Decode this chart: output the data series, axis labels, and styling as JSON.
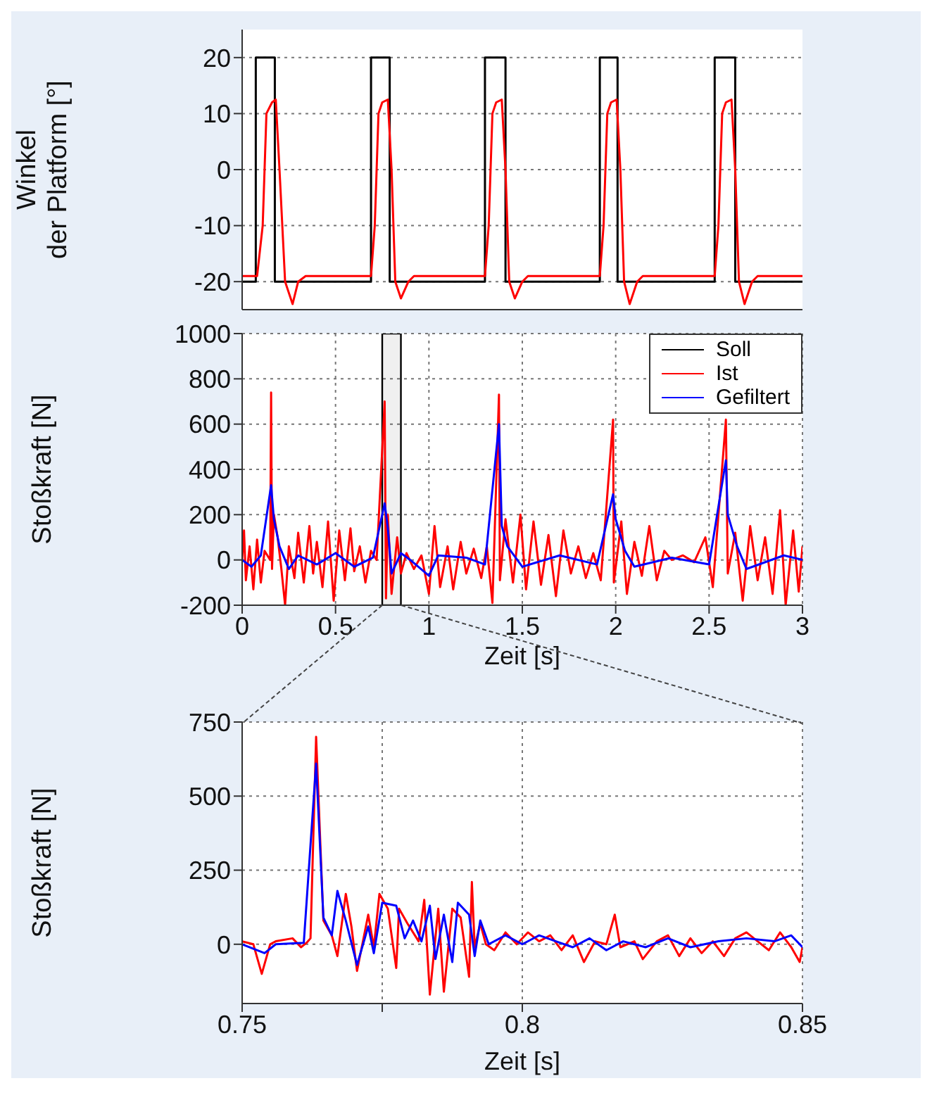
{
  "chart_data": [
    {
      "type": "line",
      "ylabel": "Winkel\nder Platform [°]",
      "xlim": [
        0,
        3
      ],
      "xticks": [
        0,
        0.5,
        1,
        1.5,
        2,
        2.5,
        3
      ],
      "ylim": [
        -25,
        25
      ],
      "yticks": [
        -20,
        -10,
        0,
        10,
        20
      ],
      "tick_labels": "y",
      "grid": true,
      "series": [
        {
          "name": "Soll",
          "type": "step",
          "color": "#000000",
          "x": [
            0,
            0.073,
            0.175,
            0.69,
            0.79,
            1.3,
            1.41,
            1.915,
            2.01,
            2.53,
            2.64,
            3
          ],
          "values": [
            -20,
            20,
            -20,
            20,
            -20,
            20,
            -20,
            20,
            -20,
            20,
            -20,
            -20
          ]
        },
        {
          "color": "#ff0000",
          "x": [
            0,
            0.08,
            0.11,
            0.13,
            0.16,
            0.18,
            0.2,
            0.23,
            0.27,
            0.3,
            0.34,
            0.69,
            0.71,
            0.73,
            0.75,
            0.78,
            0.8,
            0.82,
            0.85,
            0.89,
            0.92,
            0.96,
            1.3,
            1.32,
            1.34,
            1.36,
            1.39,
            1.41,
            1.43,
            1.46,
            1.5,
            1.53,
            1.57,
            1.915,
            1.935,
            1.955,
            1.975,
            2.005,
            2.025,
            2.045,
            2.075,
            2.115,
            2.145,
            2.185,
            2.53,
            2.55,
            2.57,
            2.59,
            2.62,
            2.64,
            2.66,
            2.69,
            2.73,
            2.76,
            2.8,
            3
          ],
          "values": [
            -19,
            -19,
            -10,
            10,
            12,
            12.5,
            0,
            -20,
            -24,
            -20,
            -19,
            -19,
            -10,
            10,
            12,
            12.5,
            0,
            -20,
            -23,
            -20,
            -19,
            -19,
            -19,
            -10,
            10,
            12,
            12.5,
            0,
            -20,
            -23,
            -20,
            -19,
            -19,
            -19,
            -10,
            10,
            12,
            12.5,
            0,
            -20,
            -24,
            -20,
            -19,
            -19,
            -19,
            -10,
            10,
            12,
            12.5,
            0,
            -20,
            -24,
            -20,
            -19,
            -19,
            -19
          ]
        }
      ]
    },
    {
      "type": "line",
      "xlabel": "Zeit [s]",
      "ylabel": "Stoßkraft [N]",
      "xlim": [
        0,
        3
      ],
      "xticks": [
        0,
        0.5,
        1,
        1.5,
        2,
        2.5,
        3
      ],
      "ylim": [
        -200,
        1000
      ],
      "yticks": [
        -200,
        0,
        200,
        400,
        600,
        800,
        1000
      ],
      "grid": true,
      "legend": "top right",
      "bands": [
        {
          "axis": "x",
          "from": 0.75,
          "to": 0.85,
          "color": "#000000"
        }
      ],
      "series": [
        {
          "name": "Ist",
          "color": "#ff0000",
          "x": [
            0,
            0.01,
            0.02,
            0.04,
            0.06,
            0.08,
            0.1,
            0.12,
            0.15,
            0.155,
            0.16,
            0.17,
            0.19,
            0.21,
            0.23,
            0.25,
            0.28,
            0.3,
            0.33,
            0.36,
            0.38,
            0.4,
            0.43,
            0.46,
            0.49,
            0.52,
            0.55,
            0.58,
            0.6,
            0.63,
            0.66,
            0.69,
            0.72,
            0.763,
            0.77,
            0.78,
            0.8,
            0.83,
            0.85,
            0.88,
            0.92,
            0.96,
            1.0,
            1.03,
            1.06,
            1.1,
            1.13,
            1.17,
            1.2,
            1.24,
            1.28,
            1.31,
            1.34,
            1.375,
            1.38,
            1.41,
            1.45,
            1.49,
            1.52,
            1.56,
            1.6,
            1.64,
            1.68,
            1.72,
            1.76,
            1.8,
            1.84,
            1.88,
            1.92,
            1.986,
            1.99,
            2.03,
            2.06,
            2.1,
            2.14,
            2.18,
            2.22,
            2.26,
            2.3,
            2.36,
            2.42,
            2.48,
            2.52,
            2.59,
            2.6,
            2.64,
            2.68,
            2.72,
            2.76,
            2.8,
            2.84,
            2.88,
            2.91,
            2.95,
            2.98,
            3.0
          ],
          "values": [
            0,
            130,
            -90,
            60,
            -130,
            90,
            -100,
            40,
            0,
            740,
            -40,
            200,
            100,
            -40,
            -200,
            60,
            -80,
            120,
            -100,
            150,
            -60,
            80,
            -120,
            170,
            -180,
            130,
            -90,
            140,
            -50,
            60,
            -100,
            40,
            0,
            700,
            -170,
            200,
            -150,
            100,
            -60,
            30,
            -40,
            20,
            -150,
            150,
            -120,
            60,
            -130,
            80,
            -60,
            50,
            -80,
            60,
            -190,
            730,
            -90,
            180,
            -100,
            200,
            -130,
            170,
            -110,
            110,
            -160,
            130,
            -60,
            60,
            -80,
            30,
            -90,
            620,
            -100,
            170,
            -150,
            80,
            -70,
            150,
            -90,
            40,
            0,
            20,
            -10,
            100,
            -120,
            620,
            -60,
            120,
            -180,
            150,
            -90,
            100,
            -150,
            220,
            -200,
            130,
            -140,
            60
          ]
        },
        {
          "name": "Gefiltert",
          "color": "#0000ff",
          "x": [
            0,
            0.05,
            0.1,
            0.155,
            0.17,
            0.2,
            0.25,
            0.3,
            0.4,
            0.5,
            0.6,
            0.7,
            0.763,
            0.78,
            0.8,
            0.85,
            0.9,
            1.0,
            1.05,
            1.2,
            1.3,
            1.375,
            1.39,
            1.42,
            1.5,
            1.7,
            1.9,
            1.986,
            2.0,
            2.05,
            2.1,
            2.3,
            2.5,
            2.59,
            2.6,
            2.65,
            2.7,
            2.9,
            3.0
          ],
          "values": [
            0,
            -30,
            20,
            330,
            180,
            60,
            -40,
            20,
            -20,
            30,
            -30,
            10,
            250,
            140,
            -60,
            30,
            0,
            -70,
            20,
            10,
            -20,
            600,
            150,
            60,
            -30,
            20,
            -20,
            290,
            180,
            40,
            -30,
            10,
            -20,
            440,
            200,
            60,
            -40,
            20,
            0
          ]
        }
      ]
    },
    {
      "type": "line",
      "xlabel": "Zeit [s]",
      "ylabel": "Stoßkraft [N]",
      "xlim": [
        0.75,
        0.85
      ],
      "xticks": [
        0.75,
        {
          "value": 0.775,
          "label": null
        },
        0.8,
        0.85
      ],
      "ylim": [
        -200,
        750
      ],
      "yticks": [
        0,
        250,
        500,
        750
      ],
      "grid": true,
      "series": [
        {
          "name": "Ist",
          "color": "#ff0000",
          "x": [
            0.75,
            0.752,
            0.7535,
            0.755,
            0.756,
            0.759,
            0.7605,
            0.7615,
            0.7622,
            0.7632,
            0.7645,
            0.766,
            0.767,
            0.7685,
            0.7695,
            0.7705,
            0.7725,
            0.7735,
            0.7745,
            0.776,
            0.7775,
            0.778,
            0.7795,
            0.7815,
            0.7825,
            0.7835,
            0.785,
            0.786,
            0.7875,
            0.789,
            0.7905,
            0.791,
            0.7915,
            0.7925,
            0.7935,
            0.795,
            0.797,
            0.799,
            0.801,
            0.803,
            0.805,
            0.807,
            0.809,
            0.811,
            0.813,
            0.815,
            0.8165,
            0.8175,
            0.82,
            0.8215,
            0.824,
            0.826,
            0.828,
            0.83,
            0.832,
            0.834,
            0.836,
            0.838,
            0.84,
            0.842,
            0.844,
            0.846,
            0.848,
            0.8495,
            0.85
          ],
          "values": [
            10,
            0,
            -100,
            0,
            10,
            20,
            -10,
            5,
            20,
            700,
            80,
            30,
            -40,
            170,
            60,
            -90,
            100,
            -10,
            170,
            120,
            -80,
            120,
            70,
            10,
            150,
            -170,
            120,
            -160,
            120,
            90,
            -110,
            210,
            -10,
            70,
            0,
            -20,
            40,
            0,
            40,
            10,
            30,
            -20,
            30,
            -60,
            10,
            0,
            100,
            -10,
            10,
            -50,
            10,
            30,
            -40,
            20,
            -30,
            10,
            -40,
            20,
            40,
            10,
            -20,
            40,
            -10,
            -60,
            -10
          ]
        },
        {
          "name": "Gefiltert",
          "color": "#0000ff",
          "x": [
            0.75,
            0.754,
            0.756,
            0.761,
            0.7632,
            0.7645,
            0.766,
            0.767,
            0.7685,
            0.7705,
            0.7725,
            0.7735,
            0.775,
            0.7775,
            0.779,
            0.7805,
            0.782,
            0.7835,
            0.7845,
            0.786,
            0.7875,
            0.7885,
            0.7905,
            0.7915,
            0.7925,
            0.794,
            0.797,
            0.8,
            0.803,
            0.806,
            0.809,
            0.812,
            0.815,
            0.818,
            0.822,
            0.826,
            0.83,
            0.835,
            0.84,
            0.845,
            0.848,
            0.85
          ],
          "values": [
            0,
            -30,
            0,
            5,
            610,
            90,
            30,
            180,
            80,
            -70,
            60,
            -30,
            140,
            130,
            20,
            80,
            10,
            130,
            -50,
            100,
            -60,
            140,
            100,
            -40,
            80,
            0,
            30,
            0,
            30,
            10,
            -10,
            20,
            -20,
            10,
            -10,
            20,
            -10,
            10,
            20,
            10,
            30,
            -10
          ]
        }
      ]
    }
  ]
}
